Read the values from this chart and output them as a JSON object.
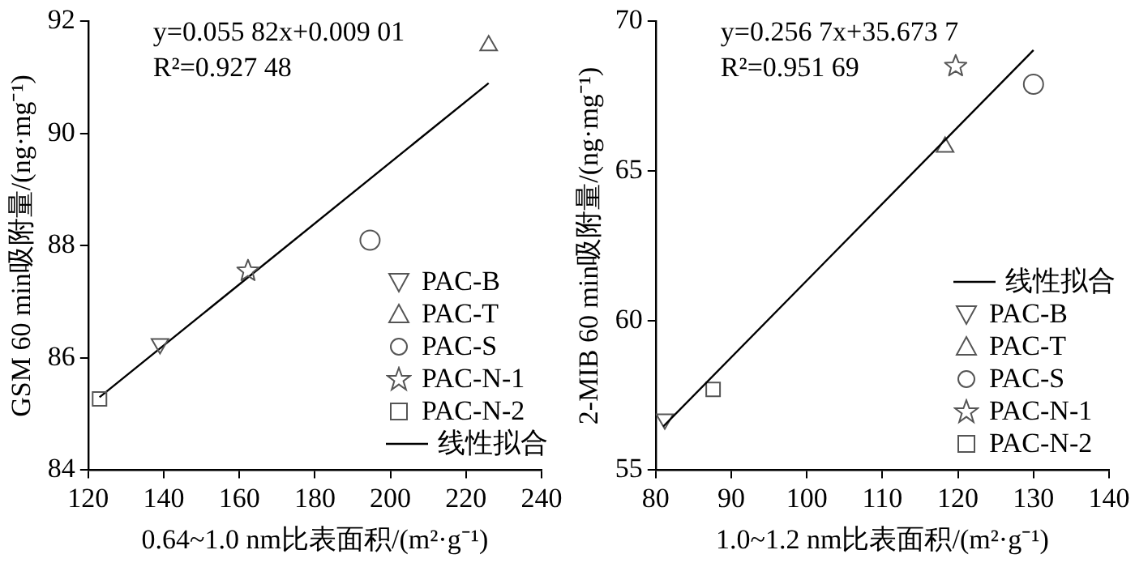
{
  "chart_data": [
    {
      "type": "scatter",
      "xlabel": "0.64~1.0 nm比表面积/(m²·g⁻¹)",
      "ylabel": "GSM 60 min吸附量/(ng·mg⁻¹)",
      "xlim": [
        120,
        240
      ],
      "xticks": [
        120,
        140,
        160,
        180,
        200,
        220,
        240
      ],
      "ylim": [
        84,
        92
      ],
      "yticks": [
        84,
        86,
        88,
        90,
        92
      ],
      "legend": "bottom right",
      "annotations": [
        "y=0.055 82x+0.009 01",
        "R²=0.927 48"
      ],
      "series": [
        {
          "name": "PAC-B",
          "color": "#555555",
          "marker": "triangle-down",
          "x": [
            139
          ],
          "values": [
            86.25
          ]
        },
        {
          "name": "PAC-T",
          "color": "#555555",
          "marker": "triangle",
          "x": [
            226
          ],
          "values": [
            91.57
          ]
        },
        {
          "name": "PAC-S",
          "color": "#555555",
          "marker": "circle",
          "x": [
            194.6
          ],
          "values": [
            88.1
          ]
        },
        {
          "name": "PAC-N-1",
          "color": "#555555",
          "marker": "star",
          "x": [
            162.3
          ],
          "values": [
            87.55
          ]
        },
        {
          "name": "PAC-N-2",
          "color": "#555555",
          "marker": "square",
          "x": [
            123
          ],
          "values": [
            85.27
          ]
        },
        {
          "name": "线性拟合",
          "type": "line",
          "color": "#000000",
          "marker": "none",
          "line_style": "solid",
          "x": [
            123,
            226
          ],
          "values": [
            85.3,
            90.9
          ]
        }
      ]
    },
    {
      "type": "scatter",
      "xlabel": "1.0~1.2 nm比表面积/(m²·g⁻¹)",
      "ylabel": "2-MIB 60 min吸附量/(ng·mg⁻¹)",
      "xlim": [
        80,
        140
      ],
      "xticks": [
        80,
        90,
        100,
        110,
        120,
        130,
        140
      ],
      "ylim": [
        55,
        70
      ],
      "yticks": [
        55,
        60,
        65,
        70
      ],
      "legend": "bottom right",
      "annotations": [
        "y=0.256 7x+35.673 7",
        "R²=0.951 69"
      ],
      "series": [
        {
          "name": "线性拟合",
          "type": "line",
          "color": "#000000",
          "marker": "none",
          "line_style": "solid",
          "x": [
            81,
            130
          ],
          "values": [
            56.46,
            69.04
          ]
        },
        {
          "name": "PAC-B",
          "color": "#555555",
          "marker": "triangle-down",
          "x": [
            81.2
          ],
          "values": [
            56.7
          ]
        },
        {
          "name": "PAC-T",
          "color": "#555555",
          "marker": "triangle",
          "x": [
            118.3
          ],
          "values": [
            65.8
          ]
        },
        {
          "name": "PAC-S",
          "color": "#555555",
          "marker": "circle",
          "x": [
            130
          ],
          "values": [
            67.9
          ]
        },
        {
          "name": "PAC-N-1",
          "color": "#555555",
          "marker": "star",
          "x": [
            119.7
          ],
          "values": [
            68.5
          ]
        },
        {
          "name": "PAC-N-2",
          "color": "#555555",
          "marker": "square",
          "x": [
            87.6
          ],
          "values": [
            57.7
          ]
        }
      ]
    }
  ]
}
